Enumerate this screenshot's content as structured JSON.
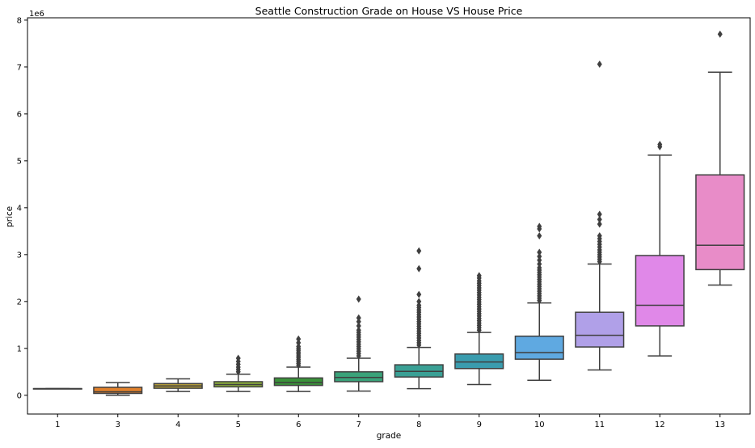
{
  "chart_data": {
    "type": "box",
    "title": "Seattle Construction Grade on House VS House Price",
    "xlabel": "grade",
    "ylabel": "price",
    "y_offset_label": "1e6",
    "y_unit_multiplier": 1000000,
    "ylim": [
      -0.4,
      8.05
    ],
    "y_ticks": [
      0,
      1,
      2,
      3,
      4,
      5,
      6,
      7,
      8
    ],
    "categories": [
      "1",
      "3",
      "4",
      "5",
      "6",
      "7",
      "8",
      "9",
      "10",
      "11",
      "12",
      "13"
    ],
    "box_colors": [
      "#3274a1",
      "#e1812c",
      "#b8a03a",
      "#8caf3c",
      "#3a923a",
      "#3aa37a",
      "#3aa095",
      "#3a9cae",
      "#5fa9e1",
      "#b0a0e8",
      "#e088e8",
      "#e88cc8"
    ],
    "series": [
      {
        "category": "1",
        "whislo": 0.142,
        "q1": 0.142,
        "med": 0.142,
        "q3": 0.142,
        "whishi": 0.142,
        "fliers": []
      },
      {
        "category": "3",
        "whislo": 0.0,
        "q1": 0.04,
        "med": 0.075,
        "q3": 0.17,
        "whishi": 0.27,
        "fliers": []
      },
      {
        "category": "4",
        "whislo": 0.08,
        "q1": 0.15,
        "med": 0.2,
        "q3": 0.25,
        "whishi": 0.35,
        "fliers": []
      },
      {
        "category": "5",
        "whislo": 0.08,
        "q1": 0.18,
        "med": 0.23,
        "q3": 0.29,
        "whishi": 0.45,
        "fliers": [
          0.5,
          0.55,
          0.6,
          0.66,
          0.72,
          0.79
        ]
      },
      {
        "category": "6",
        "whislo": 0.08,
        "q1": 0.21,
        "med": 0.27,
        "q3": 0.37,
        "whishi": 0.6,
        "fliers": [
          0.64,
          0.68,
          0.72,
          0.76,
          0.8,
          0.84,
          0.88,
          0.92,
          0.96,
          1.0,
          1.04,
          1.12,
          1.2
        ]
      },
      {
        "category": "7",
        "whislo": 0.09,
        "q1": 0.29,
        "med": 0.38,
        "q3": 0.5,
        "whishi": 0.79,
        "fliers": [
          0.84,
          0.89,
          0.94,
          0.99,
          1.04,
          1.09,
          1.14,
          1.19,
          1.24,
          1.29,
          1.34,
          1.39,
          1.48,
          1.57,
          1.65,
          2.05
        ]
      },
      {
        "category": "8",
        "whislo": 0.14,
        "q1": 0.39,
        "med": 0.51,
        "q3": 0.65,
        "whishi": 1.02,
        "fliers": [
          1.07,
          1.12,
          1.17,
          1.22,
          1.27,
          1.32,
          1.37,
          1.42,
          1.47,
          1.52,
          1.57,
          1.62,
          1.67,
          1.72,
          1.77,
          1.82,
          1.87,
          1.92,
          2.0,
          2.15,
          2.7,
          3.08
        ]
      },
      {
        "category": "9",
        "whislo": 0.23,
        "q1": 0.57,
        "med": 0.71,
        "q3": 0.88,
        "whishi": 1.34,
        "fliers": [
          1.39,
          1.44,
          1.49,
          1.54,
          1.59,
          1.64,
          1.69,
          1.74,
          1.79,
          1.84,
          1.89,
          1.94,
          1.99,
          2.04,
          2.09,
          2.14,
          2.19,
          2.24,
          2.29,
          2.34,
          2.39,
          2.44,
          2.5,
          2.55
        ]
      },
      {
        "category": "10",
        "whislo": 0.32,
        "q1": 0.77,
        "med": 0.91,
        "q3": 1.26,
        "whishi": 1.97,
        "fliers": [
          2.02,
          2.07,
          2.12,
          2.17,
          2.22,
          2.27,
          2.32,
          2.37,
          2.42,
          2.47,
          2.52,
          2.57,
          2.62,
          2.67,
          2.72,
          2.8,
          2.88,
          2.96,
          3.05,
          3.4,
          3.55,
          3.6
        ]
      },
      {
        "category": "11",
        "whislo": 0.54,
        "q1": 1.03,
        "med": 1.28,
        "q3": 1.77,
        "whishi": 2.8,
        "fliers": [
          2.85,
          2.9,
          2.95,
          3.0,
          3.05,
          3.1,
          3.16,
          3.22,
          3.28,
          3.34,
          3.4,
          3.65,
          3.75,
          3.86,
          7.06
        ]
      },
      {
        "category": "12",
        "whislo": 0.84,
        "q1": 1.48,
        "med": 1.92,
        "q3": 2.98,
        "whishi": 5.12,
        "fliers": [
          5.3,
          5.35
        ]
      },
      {
        "category": "13",
        "whislo": 2.35,
        "q1": 2.68,
        "med": 3.2,
        "q3": 4.7,
        "whishi": 6.89,
        "fliers": [
          7.7
        ]
      }
    ]
  }
}
